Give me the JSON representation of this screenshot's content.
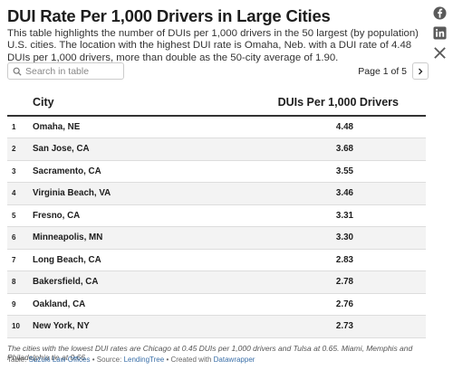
{
  "title": "DUI Rate Per 1,000 Drivers in Large Cities",
  "description": "This table highlights the number of DUIs per 1,000 drivers in the 50 largest (by population) U.S. cities. The location with the highest DUI rate is Omaha, Neb. with a DUI rate of 4.48 DUIs per 1,000 drivers, more than double as the 50-city average of 1.90.",
  "search": {
    "placeholder": "Search in table",
    "icon": "search-icon"
  },
  "pagination": {
    "label": "Page 1 of 5",
    "next_icon": "chevron-right-icon"
  },
  "social": [
    "facebook-icon",
    "linkedin-icon",
    "x-icon"
  ],
  "chart_data": {
    "type": "table",
    "columns": [
      "",
      "City",
      "DUIs Per 1,000 Drivers"
    ],
    "rows": [
      {
        "rank": "1",
        "city": "Omaha, NE",
        "value": "4.48"
      },
      {
        "rank": "2",
        "city": "San Jose, CA",
        "value": "3.68"
      },
      {
        "rank": "3",
        "city": "Sacramento, CA",
        "value": "3.55"
      },
      {
        "rank": "4",
        "city": "Virginia Beach, VA",
        "value": "3.46"
      },
      {
        "rank": "5",
        "city": "Fresno, CA",
        "value": "3.31"
      },
      {
        "rank": "6",
        "city": "Minneapolis, MN",
        "value": "3.30"
      },
      {
        "rank": "7",
        "city": "Long Beach, CA",
        "value": "2.83"
      },
      {
        "rank": "8",
        "city": "Bakersfield, CA",
        "value": "2.78"
      },
      {
        "rank": "9",
        "city": "Oakland, CA",
        "value": "2.76"
      },
      {
        "rank": "10",
        "city": "New York, NY",
        "value": "2.73"
      }
    ]
  },
  "notes": "The cities with the lowest DUI rates are Chicago at 0.45 DUIs per 1,000 drivers and Tulsa at 0.65. Miami, Memphis and Philadelphia tie at 0.66.",
  "credit": {
    "table_label": "Table:",
    "table_source": "Suzuki Law Offices",
    "sep1": "•",
    "source_label": "Source:",
    "source": "LendingTree",
    "sep2": "•",
    "created_label": "Created with",
    "created_with": "Datawrapper"
  },
  "colors": {
    "header_rule": "#333333",
    "stripe": "#f3f3f3",
    "link": "#3a6fa8"
  }
}
